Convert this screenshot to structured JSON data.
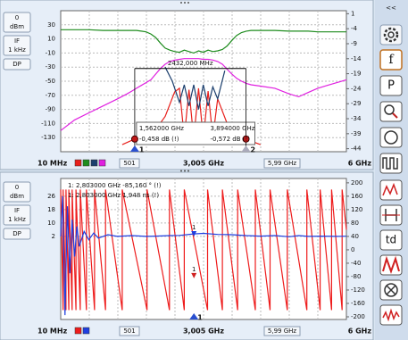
{
  "sidebar_top": {
    "power": "0",
    "power_unit": "dBm",
    "if_label": "IF",
    "if_value": "1 kHz",
    "dp": "DP"
  },
  "sidebar_bottom": {
    "power": "0",
    "power_unit": "dBm",
    "if_label": "IF",
    "if_value": "1 kHz",
    "dp": "DP"
  },
  "toolbar": {
    "collapse": "<<",
    "buttons": [
      "f",
      "P",
      "td"
    ]
  },
  "chart_data": [
    {
      "type": "line",
      "xlim": [
        0.01,
        6
      ],
      "ylim": [
        -150,
        50
      ],
      "yticks": [
        30,
        10,
        -10,
        -30,
        -50,
        -70,
        -90,
        -110,
        -130
      ],
      "y2lim": [
        -45,
        2
      ],
      "y2ticks": [
        1,
        -4,
        -9,
        -14,
        -19,
        -24,
        -29,
        -34,
        -39,
        -44
      ],
      "grid": true,
      "x_start": "10 MHz",
      "x_center": "3,005 GHz",
      "x_end": "6 GHz",
      "points": "501",
      "span": "5,99 GHz",
      "series": [
        {
          "color": "#e8201c",
          "x": [
            1.3,
            1.56,
            1.9,
            2.2,
            2.4,
            2.5,
            2.6,
            2.7,
            2.8,
            2.9,
            3.0,
            3.1,
            3.2,
            3.3,
            3.5,
            3.7,
            3.89,
            4.2
          ],
          "values": [
            -140,
            -132,
            -128,
            -100,
            -65,
            -60,
            -130,
            -62,
            -132,
            -60,
            -132,
            -64,
            -130,
            -75,
            -110,
            -128,
            -132,
            -140
          ]
        },
        {
          "color": "#1e8c1e",
          "x": [
            0.01,
            0.3,
            0.6,
            0.9,
            1.2,
            1.4,
            1.5,
            1.6,
            1.7,
            1.8,
            1.9,
            2.0,
            2.1,
            2.2,
            2.3,
            2.4,
            2.5,
            2.6,
            2.7,
            2.8,
            2.9,
            3.0,
            3.1,
            3.2,
            3.3,
            3.4,
            3.5,
            3.6,
            3.7,
            3.8,
            3.9,
            4.0,
            4.2,
            4.5,
            4.8,
            5.0,
            5.2,
            5.4,
            5.6,
            5.8,
            6.0
          ],
          "values": [
            23,
            23,
            23,
            22,
            22,
            22,
            22,
            22,
            21,
            20,
            17,
            12,
            4,
            -3,
            -6,
            -8,
            -9,
            -6,
            -8,
            -10,
            -7,
            -9,
            -6,
            -8,
            -7,
            -5,
            0,
            8,
            15,
            19,
            21,
            22,
            22,
            22,
            21,
            21,
            21,
            20,
            20,
            20,
            20
          ]
        },
        {
          "color": "#1c3f6e",
          "x": [
            2.2,
            2.35,
            2.5,
            2.6,
            2.7,
            2.8,
            2.9,
            3.0,
            3.1,
            3.2,
            3.3,
            3.45
          ],
          "values": [
            -30,
            -50,
            -80,
            -55,
            -85,
            -55,
            -90,
            -55,
            -85,
            -58,
            -75,
            -35
          ]
        },
        {
          "color": "#e020e0",
          "x": [
            0.01,
            0.3,
            0.6,
            0.9,
            1.2,
            1.4,
            1.5,
            1.6,
            1.7,
            1.8,
            1.9,
            2.0,
            2.1,
            2.2,
            2.3,
            2.4,
            2.5,
            2.6,
            2.7,
            2.8,
            2.9,
            3.0,
            3.1,
            3.2,
            3.3,
            3.4,
            3.5,
            3.6,
            3.7,
            3.8,
            3.9,
            4.0,
            4.2,
            4.5,
            4.8,
            5.0,
            5.2,
            5.4,
            5.6,
            5.8,
            6.0
          ],
          "values": [
            -120,
            -105,
            -95,
            -85,
            -75,
            -68,
            -64,
            -60,
            -56,
            -52,
            -48,
            -40,
            -32,
            -26,
            -22,
            -20,
            -19,
            -18,
            -18,
            -18,
            -18,
            -19,
            -19,
            -20,
            -22,
            -26,
            -33,
            -40,
            -46,
            -50,
            -53,
            -55,
            -57,
            -60,
            -68,
            -72,
            -66,
            -60,
            -56,
            -52,
            -48
          ]
        }
      ],
      "markers": [
        {
          "label": "1",
          "x": 1.562,
          "y": -132,
          "frequency": "1,562000 GHz",
          "readout": "-0,458 dB (!)"
        },
        {
          "label": "2",
          "x": 3.894,
          "y": -132,
          "frequency": "3,894000 GHz",
          "readout": "-0,572 dB (!)"
        }
      ],
      "bandwidth": {
        "label": "2432,000 MHz",
        "y": -32
      }
    },
    {
      "type": "line",
      "xlim": [
        0.01,
        6
      ],
      "ylim": [
        -47.6,
        36.6
      ],
      "yticks": [
        26,
        18,
        10,
        2
      ],
      "y2lim": [
        -208,
        213
      ],
      "y2ticks": [
        200,
        160,
        120,
        80,
        40,
        0,
        -40,
        -80,
        -120,
        -160,
        -200
      ],
      "grid": true,
      "x_start": "10 MHz",
      "x_center": "3,005 GHz",
      "x_end": "6 GHz",
      "points": "501",
      "span": "5,99 GHz",
      "series": [
        {
          "color": "#ee1c1c",
          "axis": "y2",
          "x": [
            0.01,
            0.06,
            0.06,
            0.12,
            0.12,
            0.18,
            0.18,
            0.25,
            0.25,
            0.33,
            0.33,
            0.42,
            0.42,
            0.55,
            0.55,
            0.72,
            0.72,
            0.95,
            0.95,
            1.3,
            1.3,
            1.82,
            1.82,
            2.29,
            2.29,
            2.6,
            2.6,
            3.09,
            3.09,
            3.4,
            3.4,
            3.72,
            3.72,
            4.09,
            4.09,
            4.4,
            4.4,
            4.76,
            4.76,
            5.17,
            5.17,
            5.45,
            5.45,
            5.69,
            5.69,
            5.91,
            5.91,
            6.0
          ],
          "values": [
            180,
            -180,
            180,
            -180,
            180,
            -180,
            180,
            -180,
            180,
            -180,
            180,
            -180,
            180,
            -180,
            180,
            -180,
            180,
            -180,
            180,
            -180,
            180,
            -180,
            180,
            -180,
            180,
            -180,
            180,
            -180,
            180,
            -180,
            180,
            -180,
            180,
            -180,
            180,
            -180,
            180,
            -180,
            180,
            -180,
            180,
            -180,
            180,
            -180,
            180,
            -180,
            180,
            60
          ]
        },
        {
          "color": "#1f3fe0",
          "x": [
            0.01,
            0.05,
            0.1,
            0.15,
            0.2,
            0.25,
            0.3,
            0.35,
            0.4,
            0.5,
            0.6,
            0.7,
            0.8,
            1.0,
            1.2,
            1.5,
            1.8,
            2.0,
            2.3,
            2.5,
            2.8,
            3.0,
            3.3,
            3.6,
            3.9,
            4.2,
            4.5,
            4.8,
            5.0,
            5.2,
            5.5,
            5.8,
            6.0
          ],
          "values": [
            2,
            26,
            -45,
            20,
            -20,
            12,
            -10,
            8,
            -4,
            5,
            0,
            4,
            1,
            3,
            2,
            2.5,
            2,
            2.2,
            2.5,
            2.6,
            3.5,
            3.8,
            3.2,
            3.0,
            2.5,
            2.2,
            2.5,
            1.8,
            2.5,
            2.0,
            2.2,
            2.0,
            2.1
          ]
        }
      ],
      "marker": {
        "label": "1",
        "x": 2.803,
        "phase": -85.16,
        "delay": 1.948
      },
      "readouts": [
        "1: 2,803000 GHz -85,160 ° (!)",
        "1: 2,803000 GHz 1,948 ns (!)"
      ]
    }
  ]
}
